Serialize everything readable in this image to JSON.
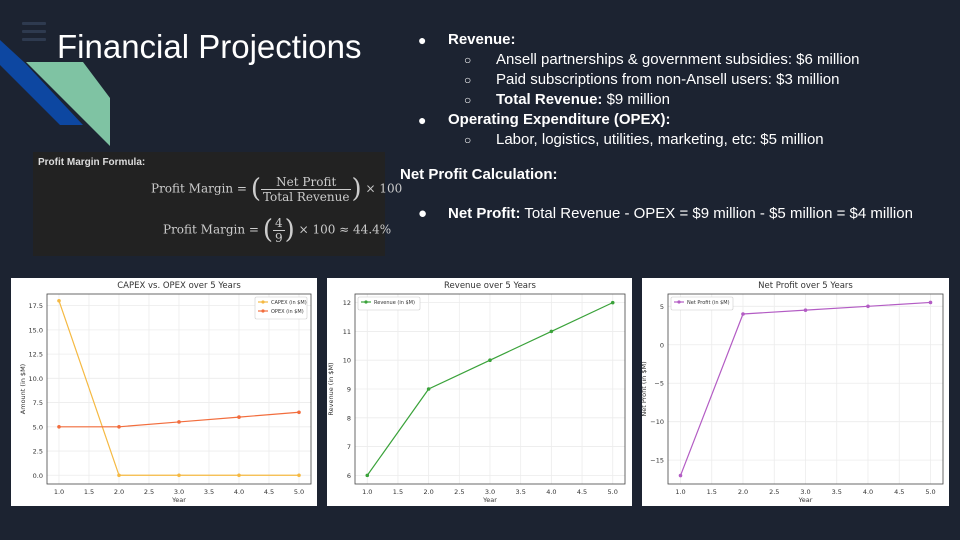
{
  "slide": {
    "title": "Financial Projections",
    "colors": {
      "background": "#1c2331",
      "deco_blue": "#0d47a1",
      "deco_green": "#7fc3a3",
      "menu": "#2e3a4f"
    }
  },
  "bullets": {
    "revenue": {
      "label": "Revenue:",
      "items": [
        {
          "text": "Ansell partnerships & government subsidies: $6 million"
        },
        {
          "text": "Paid subscriptions from non-Ansell users: $3 million"
        },
        {
          "label": "Total Revenue:",
          "text": " $9 million"
        }
      ]
    },
    "opex": {
      "label": "Operating Expenditure (OPEX):",
      "items": [
        {
          "text": "Labor, logistics, utilities, marketing, etc: $5 million"
        }
      ]
    },
    "net_calc_heading": "Net Profit Calculation:",
    "net_profit": {
      "label": "Net Profit:",
      "text": " Total Revenue - OPEX = $9 million - $5 million = $4 million"
    }
  },
  "formula": {
    "heading": "Profit Margin Formula:",
    "lhs": "Profit Margin =",
    "num": "Net Profit",
    "den": "Total Revenue",
    "times": "× 100",
    "lhs2": "Profit Margin =",
    "num2": "4",
    "den2": "9",
    "result": "× 100 ≈ 44.4%"
  },
  "chart_data": [
    {
      "type": "line",
      "title": "CAPEX vs. OPEX over 5 Years",
      "xlabel": "Year",
      "ylabel": "Amount (in $M)",
      "x": [
        1,
        2,
        3,
        4,
        5
      ],
      "xlim": [
        0.8,
        5.2
      ],
      "ylim": [
        -0.9,
        18.7
      ],
      "xticks": [
        "1.0",
        "1.5",
        "2.0",
        "2.5",
        "3.0",
        "3.5",
        "4.0",
        "4.5",
        "5.0"
      ],
      "yticks": [
        "0.0",
        "2.5",
        "5.0",
        "7.5",
        "10.0",
        "12.5",
        "15.0",
        "17.5"
      ],
      "legend": "top-right",
      "grid": true,
      "series": [
        {
          "name": "CAPEX (in $M)",
          "values": [
            18,
            0,
            0,
            0,
            0
          ],
          "color": "#f5b942"
        },
        {
          "name": "OPEX (in $M)",
          "values": [
            5,
            5,
            5.5,
            6,
            6.5
          ],
          "color": "#f26d3d"
        }
      ]
    },
    {
      "type": "line",
      "title": "Revenue over 5 Years",
      "xlabel": "Year",
      "ylabel": "Revenue (in $M)",
      "x": [
        1,
        2,
        3,
        4,
        5
      ],
      "xlim": [
        0.8,
        5.2
      ],
      "ylim": [
        5.7,
        12.3
      ],
      "xticks": [
        "1.0",
        "1.5",
        "2.0",
        "2.5",
        "3.0",
        "3.5",
        "4.0",
        "4.5",
        "5.0"
      ],
      "yticks": [
        "6",
        "7",
        "8",
        "9",
        "10",
        "11",
        "12"
      ],
      "legend": "top-left",
      "grid": true,
      "series": [
        {
          "name": "Revenue (in $M)",
          "values": [
            6,
            9,
            10,
            11,
            12
          ],
          "color": "#3aa23a"
        }
      ]
    },
    {
      "type": "line",
      "title": "Net Profit over 5 Years",
      "xlabel": "Year",
      "ylabel": "Net Profit (in $M)",
      "x": [
        1,
        2,
        3,
        4,
        5
      ],
      "xlim": [
        0.8,
        5.2
      ],
      "ylim": [
        -18.1,
        6.6
      ],
      "xticks": [
        "1.0",
        "1.5",
        "2.0",
        "2.5",
        "3.0",
        "3.5",
        "4.0",
        "4.5",
        "5.0"
      ],
      "yticks": [
        "−15",
        "−10",
        "−5",
        "0",
        "5"
      ],
      "legend": "top-left",
      "grid": true,
      "series": [
        {
          "name": "Net Profit (in $M)",
          "values": [
            -17,
            4,
            4.5,
            5,
            5.5
          ],
          "color": "#b35cc4"
        }
      ]
    }
  ]
}
